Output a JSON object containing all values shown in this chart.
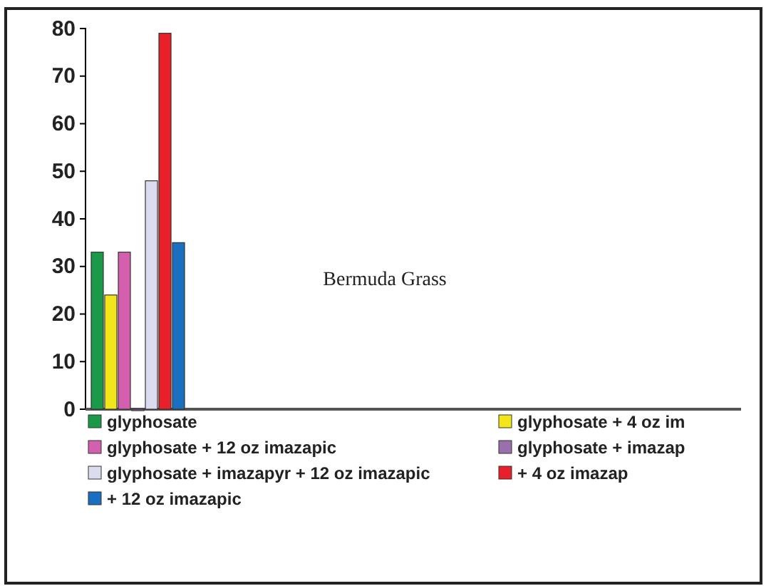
{
  "chart_data": {
    "type": "bar",
    "title": "Bermuda Grass",
    "categories": [
      null
    ],
    "series": [
      {
        "name": "glyphosate",
        "color": "#1a9a48",
        "values": [
          33
        ]
      },
      {
        "name": "glyphosate + 4 oz im",
        "color": "#f2e61a",
        "values": [
          24
        ]
      },
      {
        "name": "glyphosate + 12 oz imazapic",
        "color": "#d45fae",
        "values": [
          33
        ]
      },
      {
        "name": "glyphosate + imazap",
        "color": "#9a6fae",
        "values": [
          0
        ]
      },
      {
        "name": "glyphosate + imazapyr + 12 oz imazapic",
        "color": "#dcdcf0",
        "values": [
          48
        ]
      },
      {
        "name": "+ 4 oz imazap",
        "color": "#e8202a",
        "values": [
          79
        ]
      },
      {
        "name": "+ 12 oz imazapic",
        "color": "#1a6fc0",
        "values": [
          35
        ]
      }
    ],
    "ylim": [
      0,
      80
    ],
    "yticks": [
      0,
      10,
      20,
      30,
      40,
      50,
      60,
      70,
      80
    ],
    "grid": false,
    "legend": "bottom"
  }
}
